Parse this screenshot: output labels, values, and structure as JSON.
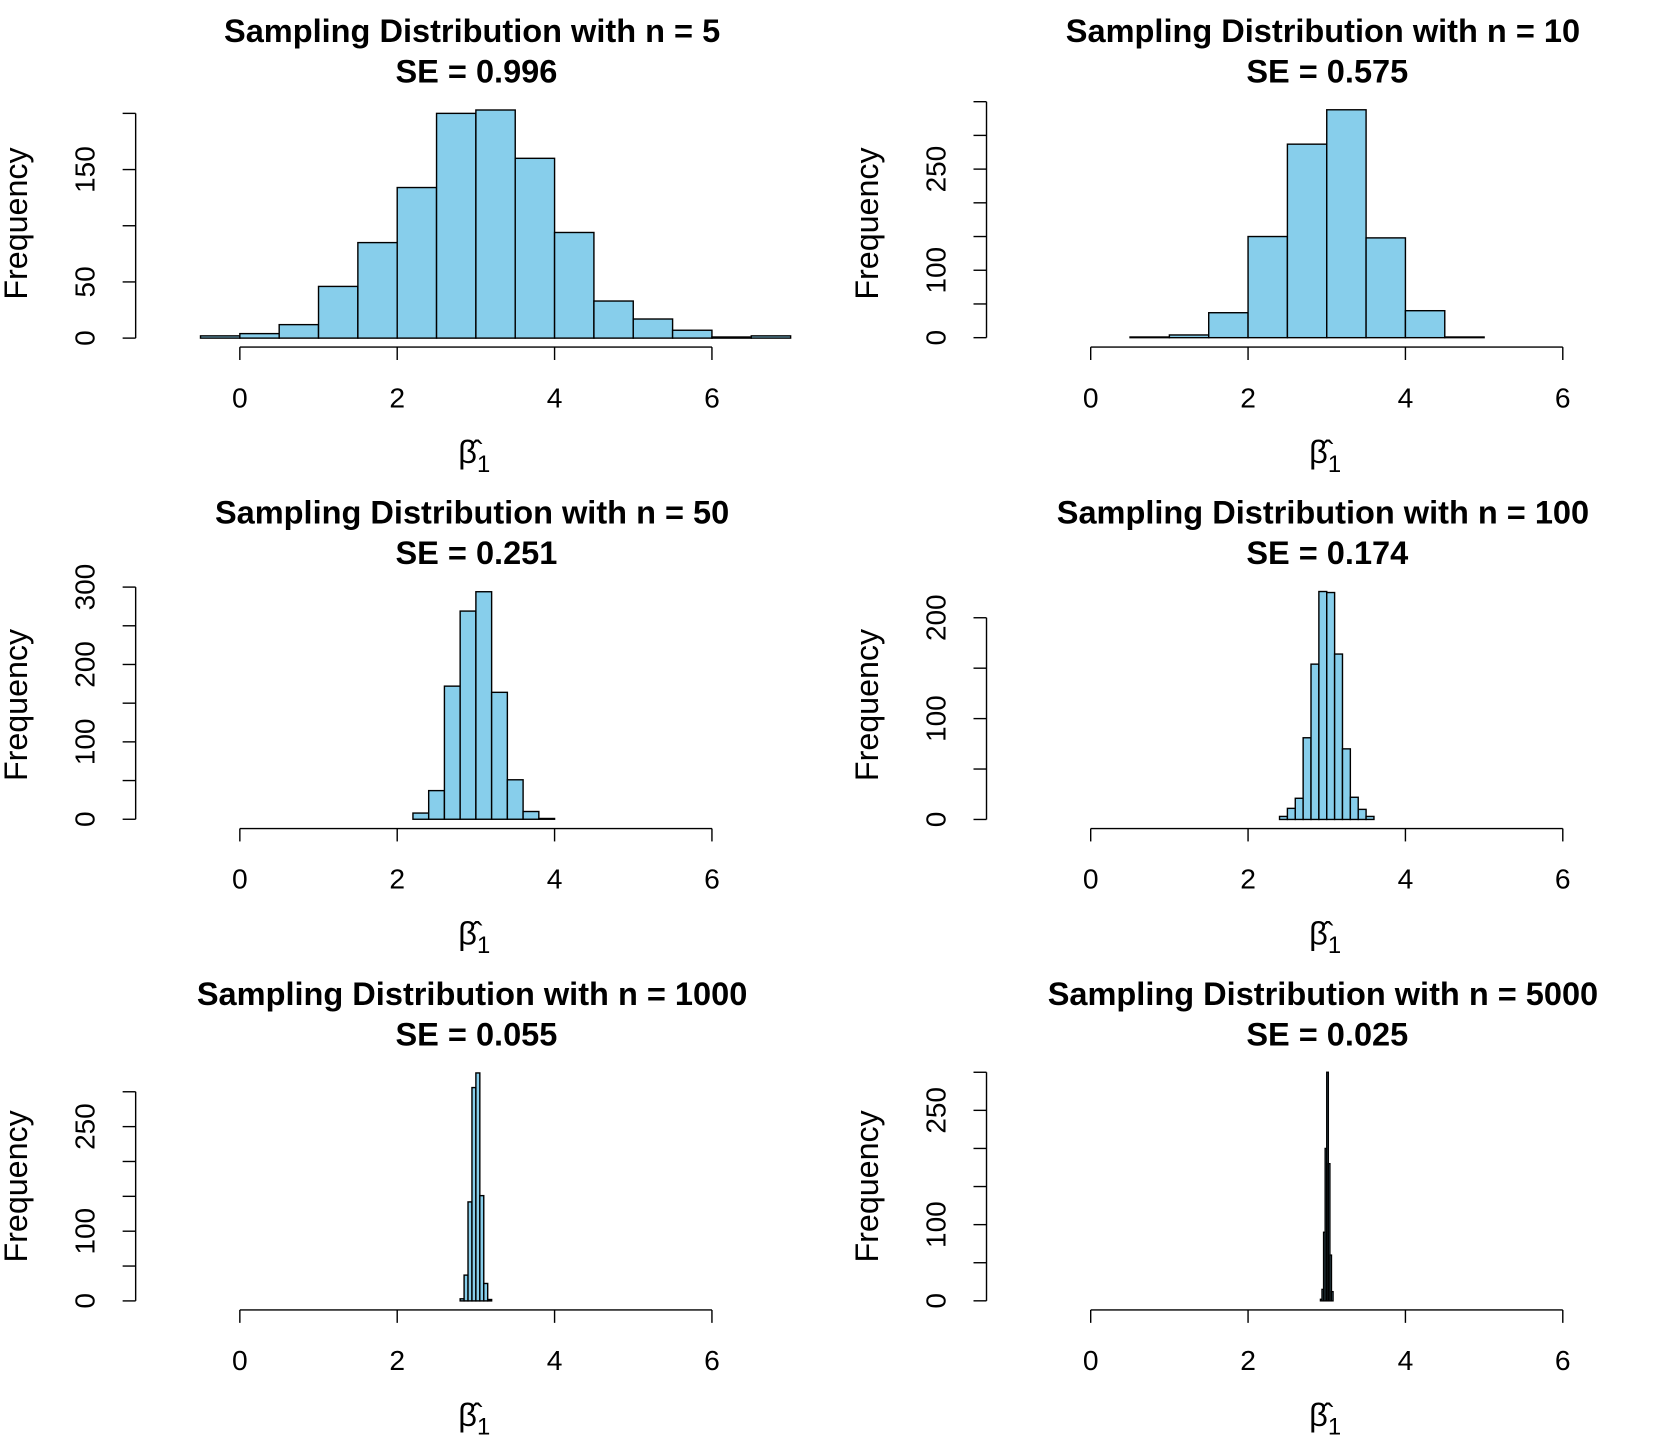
{
  "chart_data": [
    {
      "type": "histogram",
      "title": "Sampling Distribution with n = 5",
      "subtitle": "SE = 0.996",
      "xlabel": {
        "symbol": "β̂",
        "subscript": "1"
      },
      "ylabel": "Frequency",
      "color": "#87ceeb",
      "bins": [
        -0.5,
        0,
        0.5,
        1,
        1.5,
        2,
        2.5,
        3,
        3.5,
        4,
        4.5,
        5,
        5.5,
        6,
        6.5,
        7
      ],
      "counts": [
        2,
        4,
        12,
        46,
        85,
        134,
        200,
        203,
        160,
        94,
        33,
        17,
        7,
        1,
        2
      ],
      "xlim": [
        0,
        6
      ],
      "xticks": [
        0,
        2,
        4,
        6
      ],
      "ylim": [
        -8,
        211
      ],
      "yticks": [
        0,
        50,
        {
          "value": 100,
          "label": null
        },
        150,
        {
          "value": 200,
          "label": null
        }
      ]
    },
    {
      "type": "histogram",
      "title": "Sampling Distribution with n = 10",
      "subtitle": "SE = 0.575",
      "xlabel": {
        "symbol": "β̂",
        "subscript": "1"
      },
      "ylabel": "Frequency",
      "color": "#87ceeb",
      "bins": [
        0.5,
        1,
        1.5,
        2,
        2.5,
        3,
        3.5,
        4,
        4.5,
        5
      ],
      "counts": [
        1,
        4,
        37,
        150,
        287,
        338,
        148,
        40,
        1
      ],
      "xlim": [
        0,
        6
      ],
      "xticks": [
        0,
        2,
        4,
        6
      ],
      "ylim": [
        -14,
        351
      ],
      "yticks": [
        0,
        {
          "value": 50,
          "label": null
        },
        100,
        {
          "value": 150,
          "label": null
        },
        {
          "value": 200,
          "label": null
        },
        250,
        {
          "value": 300,
          "label": null
        },
        {
          "value": 350,
          "label": null
        }
      ]
    },
    {
      "type": "histogram",
      "title": "Sampling Distribution with n = 50",
      "subtitle": "SE = 0.251",
      "xlabel": {
        "symbol": "β̂",
        "subscript": "1"
      },
      "ylabel": "Frequency",
      "color": "#87ceeb",
      "bins": [
        2.2,
        2.4,
        2.6,
        2.8,
        3.0,
        3.2,
        3.4,
        3.6,
        3.8,
        4.0
      ],
      "counts": [
        8,
        37,
        172,
        269,
        294,
        164,
        51,
        10,
        1
      ],
      "xlim": [
        0,
        6
      ],
      "xticks": [
        0,
        2,
        4,
        6
      ],
      "ylim": [
        -12,
        306
      ],
      "yticks": [
        0,
        {
          "value": 50,
          "label": null
        },
        100,
        {
          "value": 150,
          "label": null
        },
        200,
        {
          "value": 250,
          "label": null
        },
        300
      ]
    },
    {
      "type": "histogram",
      "title": "Sampling Distribution with n = 100",
      "subtitle": "SE = 0.174",
      "xlabel": {
        "symbol": "β̂",
        "subscript": "1"
      },
      "ylabel": "Frequency",
      "color": "#87ceeb",
      "bins": [
        2.4,
        2.5,
        2.6,
        2.7,
        2.8,
        2.9,
        3.0,
        3.1,
        3.2,
        3.3,
        3.4,
        3.5,
        3.6
      ],
      "counts": [
        3,
        11,
        21,
        81,
        154,
        226,
        225,
        164,
        70,
        22,
        10,
        3
      ],
      "xlim": [
        0,
        6
      ],
      "xticks": [
        0,
        2,
        4,
        6
      ],
      "ylim": [
        -9,
        235
      ],
      "yticks": [
        0,
        {
          "value": 50,
          "label": null
        },
        100,
        {
          "value": 150,
          "label": null
        },
        200
      ]
    },
    {
      "type": "histogram",
      "title": "Sampling Distribution with n = 1000",
      "subtitle": "SE = 0.055",
      "xlabel": {
        "symbol": "β̂",
        "subscript": "1"
      },
      "ylabel": "Frequency",
      "color": "#87ceeb",
      "bins": [
        2.8,
        2.85,
        2.9,
        2.95,
        3.0,
        3.05,
        3.1,
        3.15,
        3.2
      ],
      "counts": [
        3,
        37,
        142,
        306,
        327,
        151,
        25,
        2
      ],
      "xlim": [
        0,
        6
      ],
      "xticks": [
        0,
        2,
        4,
        6
      ],
      "ylim": [
        -13,
        340
      ],
      "yticks": [
        0,
        {
          "value": 50,
          "label": null
        },
        100,
        {
          "value": 150,
          "label": null
        },
        {
          "value": 200,
          "label": null
        },
        250,
        {
          "value": 300,
          "label": null
        }
      ]
    },
    {
      "type": "histogram",
      "title": "Sampling Distribution with n = 5000",
      "subtitle": "SE = 0.025",
      "xlabel": {
        "symbol": "β̂",
        "subscript": "1"
      },
      "ylabel": "Frequency",
      "color": "#87ceeb",
      "bins": [
        2.92,
        2.94,
        2.96,
        2.98,
        3.0,
        3.02,
        3.04,
        3.06,
        3.08
      ],
      "counts": [
        2,
        15,
        90,
        200,
        300,
        180,
        60,
        12
      ],
      "xlim": [
        0,
        6
      ],
      "xticks": [
        0,
        2,
        4,
        6
      ],
      "ylim": [
        -12,
        311
      ],
      "yticks": [
        0,
        {
          "value": 50,
          "label": null
        },
        100,
        {
          "value": 150,
          "label": null
        },
        {
          "value": 200,
          "label": null
        },
        250,
        {
          "value": 300,
          "label": null
        }
      ]
    }
  ]
}
